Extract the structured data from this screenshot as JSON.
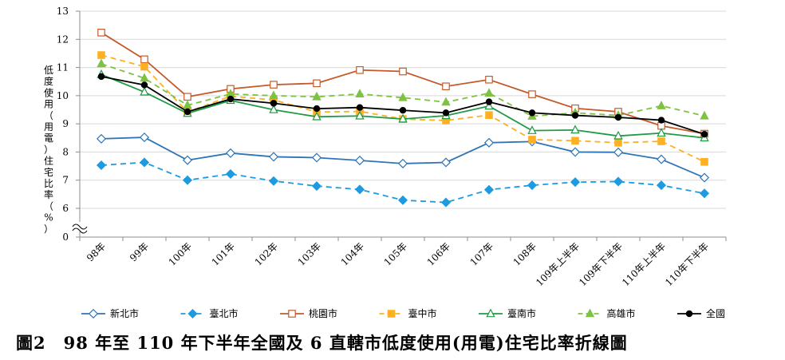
{
  "caption": "圖2　98 年至 110 年下半年全國及 6 直轄市低度使用(用電)住宅比率折線圖",
  "chart_data": {
    "type": "line",
    "ylabel": "低度使用（用電）住宅比率（%）",
    "ylim": [
      0,
      13
    ],
    "axis_break": true,
    "yticks": [
      0,
      6,
      7,
      8,
      9,
      10,
      11,
      12,
      13
    ],
    "grid": true,
    "legend_position": "bottom",
    "categories": [
      "98年",
      "99年",
      "100年",
      "101年",
      "102年",
      "103年",
      "104年",
      "105年",
      "106年",
      "107年",
      "108年",
      "109年上半年",
      "109年下半年",
      "110年上半年",
      "110年下半年"
    ],
    "series": [
      {
        "name": "新北市",
        "color": "#2E75B6",
        "dash": "solid",
        "marker": "diamond-open",
        "values": [
          8.47,
          8.52,
          7.71,
          7.96,
          7.83,
          7.8,
          7.7,
          7.59,
          7.63,
          8.33,
          8.37,
          8.0,
          7.99,
          7.74,
          7.09
        ]
      },
      {
        "name": "臺北市",
        "color": "#1E9BE0",
        "dash": "dashed",
        "marker": "diamond-filled",
        "values": [
          7.53,
          7.63,
          7.0,
          7.22,
          6.97,
          6.79,
          6.67,
          6.29,
          6.21,
          6.66,
          6.82,
          6.93,
          6.95,
          6.82,
          6.53
        ]
      },
      {
        "name": "桃園市",
        "color": "#C55A28",
        "dash": "solid",
        "marker": "square-open",
        "values": [
          12.24,
          11.29,
          9.96,
          10.24,
          10.39,
          10.44,
          10.91,
          10.86,
          10.33,
          10.57,
          10.05,
          9.55,
          9.43,
          8.93,
          8.65
        ]
      },
      {
        "name": "臺中市",
        "color": "#FDB022",
        "dash": "dashed",
        "marker": "square-filled",
        "values": [
          11.44,
          11.03,
          9.42,
          9.98,
          9.85,
          9.42,
          9.44,
          9.17,
          9.12,
          9.31,
          8.44,
          8.4,
          8.33,
          8.38,
          7.65
        ]
      },
      {
        "name": "臺南市",
        "color": "#1F9B45",
        "dash": "solid",
        "marker": "triangle-open",
        "values": [
          10.75,
          10.13,
          9.37,
          9.83,
          9.5,
          9.25,
          9.28,
          9.17,
          9.29,
          9.63,
          8.76,
          8.78,
          8.57,
          8.67,
          8.5
        ]
      },
      {
        "name": "高雄市",
        "color": "#7DC242",
        "dash": "dashed",
        "marker": "triangle-filled",
        "values": [
          11.13,
          10.62,
          9.66,
          10.06,
          10.0,
          9.96,
          10.06,
          9.93,
          9.77,
          10.09,
          9.27,
          9.39,
          9.3,
          9.64,
          9.28
        ]
      },
      {
        "name": "全國",
        "color": "#000000",
        "dash": "solid",
        "marker": "circle-filled",
        "values": [
          10.68,
          10.38,
          9.43,
          9.88,
          9.73,
          9.54,
          9.58,
          9.48,
          9.39,
          9.78,
          9.39,
          9.3,
          9.23,
          9.13,
          8.63
        ]
      }
    ]
  }
}
